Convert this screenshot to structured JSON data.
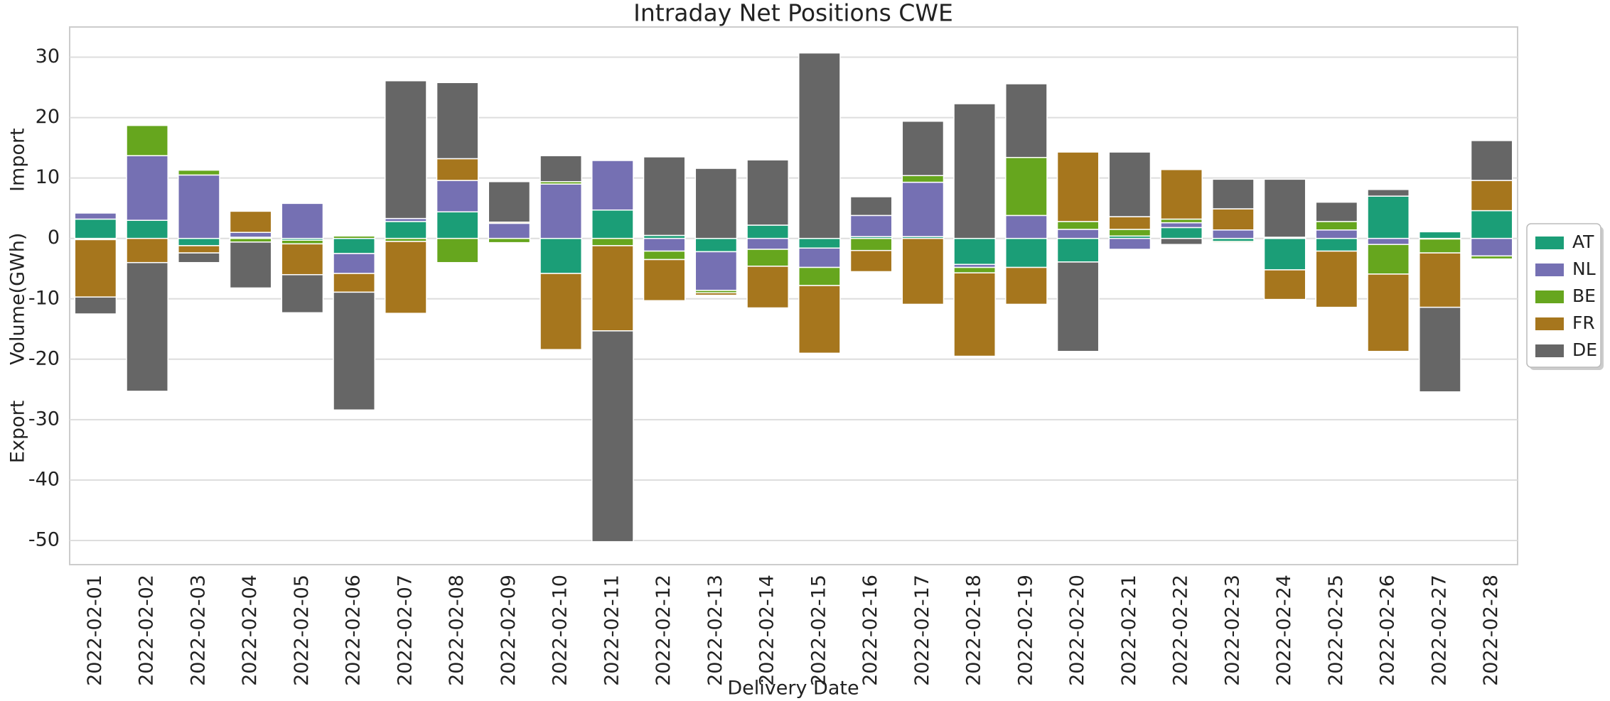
{
  "chart_data": {
    "type": "stacked_bar",
    "title": "Intraday Net Positions CWE",
    "x_label": "Delivery Date",
    "y_label": "Volume(GWh)",
    "annotations": [
      "Import",
      "Export"
    ],
    "categories": [
      "2022-02-01",
      "2022-02-02",
      "2022-02-03",
      "2022-02-04",
      "2022-02-05",
      "2022-02-06",
      "2022-02-07",
      "2022-02-08",
      "2022-02-09",
      "2022-02-10",
      "2022-02-11",
      "2022-02-12",
      "2022-02-13",
      "2022-02-14",
      "2022-02-15",
      "2022-02-16",
      "2022-02-17",
      "2022-02-18",
      "2022-02-19",
      "2022-02-20",
      "2022-02-21",
      "2022-02-22",
      "2022-02-23",
      "2022-02-24",
      "2022-02-25",
      "2022-02-26",
      "2022-02-27",
      "2022-02-28"
    ],
    "series": [
      {
        "name": "AT",
        "color": "#1b9e77",
        "values": [
          3.2,
          3.0,
          -1.2,
          0.2,
          -0.3,
          -2.5,
          2.8,
          4.4,
          0,
          -5.8,
          4.7,
          0.5,
          -2.2,
          2.2,
          -1.6,
          0.3,
          0.3,
          -4.3,
          -4.8,
          -3.9,
          0.4,
          1.8,
          -0.5,
          -5.2,
          -2.1,
          7.0,
          1.1,
          4.6
        ]
      },
      {
        "name": "NL",
        "color": "#7570b3",
        "values": [
          1.0,
          10.7,
          10.5,
          0.8,
          5.8,
          -3.3,
          0.5,
          5.2,
          2.5,
          9.0,
          8.2,
          -2.1,
          -6.4,
          -1.8,
          -3.2,
          3.5,
          9.0,
          -0.5,
          3.8,
          1.5,
          -1.8,
          0.8,
          1.4,
          0.1,
          1.4,
          -1.0,
          -0.1,
          -2.9
        ]
      },
      {
        "name": "BE",
        "color": "#66a61e",
        "values": [
          -0.2,
          5.0,
          0.8,
          -0.6,
          -0.6,
          0.4,
          -0.5,
          -4.0,
          -0.7,
          0.4,
          -1.2,
          -1.4,
          -0.4,
          -2.8,
          -3.0,
          -2.0,
          1.1,
          -0.9,
          9.6,
          1.3,
          1.1,
          0.6,
          -0.2,
          0.1,
          1.4,
          -4.9,
          -2.3,
          -0.5
        ]
      },
      {
        "name": "FR",
        "color": "#a6761d",
        "values": [
          -9.5,
          -4.0,
          -1.2,
          3.5,
          -5.1,
          -3.1,
          -11.9,
          3.6,
          0.2,
          -12.6,
          -14.1,
          -6.8,
          -0.4,
          -6.9,
          -11.2,
          -3.5,
          -10.9,
          -13.8,
          -6.1,
          11.5,
          2.1,
          8.2,
          3.5,
          -4.9,
          -9.3,
          -12.8,
          -9.0,
          5.0
        ]
      },
      {
        "name": "DE",
        "color": "#666666",
        "values": [
          -2.8,
          -21.3,
          -1.6,
          -7.6,
          -6.3,
          -19.5,
          22.8,
          12.6,
          6.7,
          4.3,
          -34.9,
          13.0,
          11.6,
          10.8,
          30.7,
          3.1,
          9.0,
          22.3,
          12.2,
          -14.8,
          10.7,
          -1.0,
          4.9,
          9.6,
          3.2,
          1.1,
          -14.0,
          6.6
        ]
      }
    ],
    "ylim": [
      -54,
      35
    ],
    "yticks": [
      -50,
      -40,
      -30,
      -20,
      -10,
      0,
      10,
      20,
      30
    ],
    "grid": true,
    "legend": "right"
  }
}
